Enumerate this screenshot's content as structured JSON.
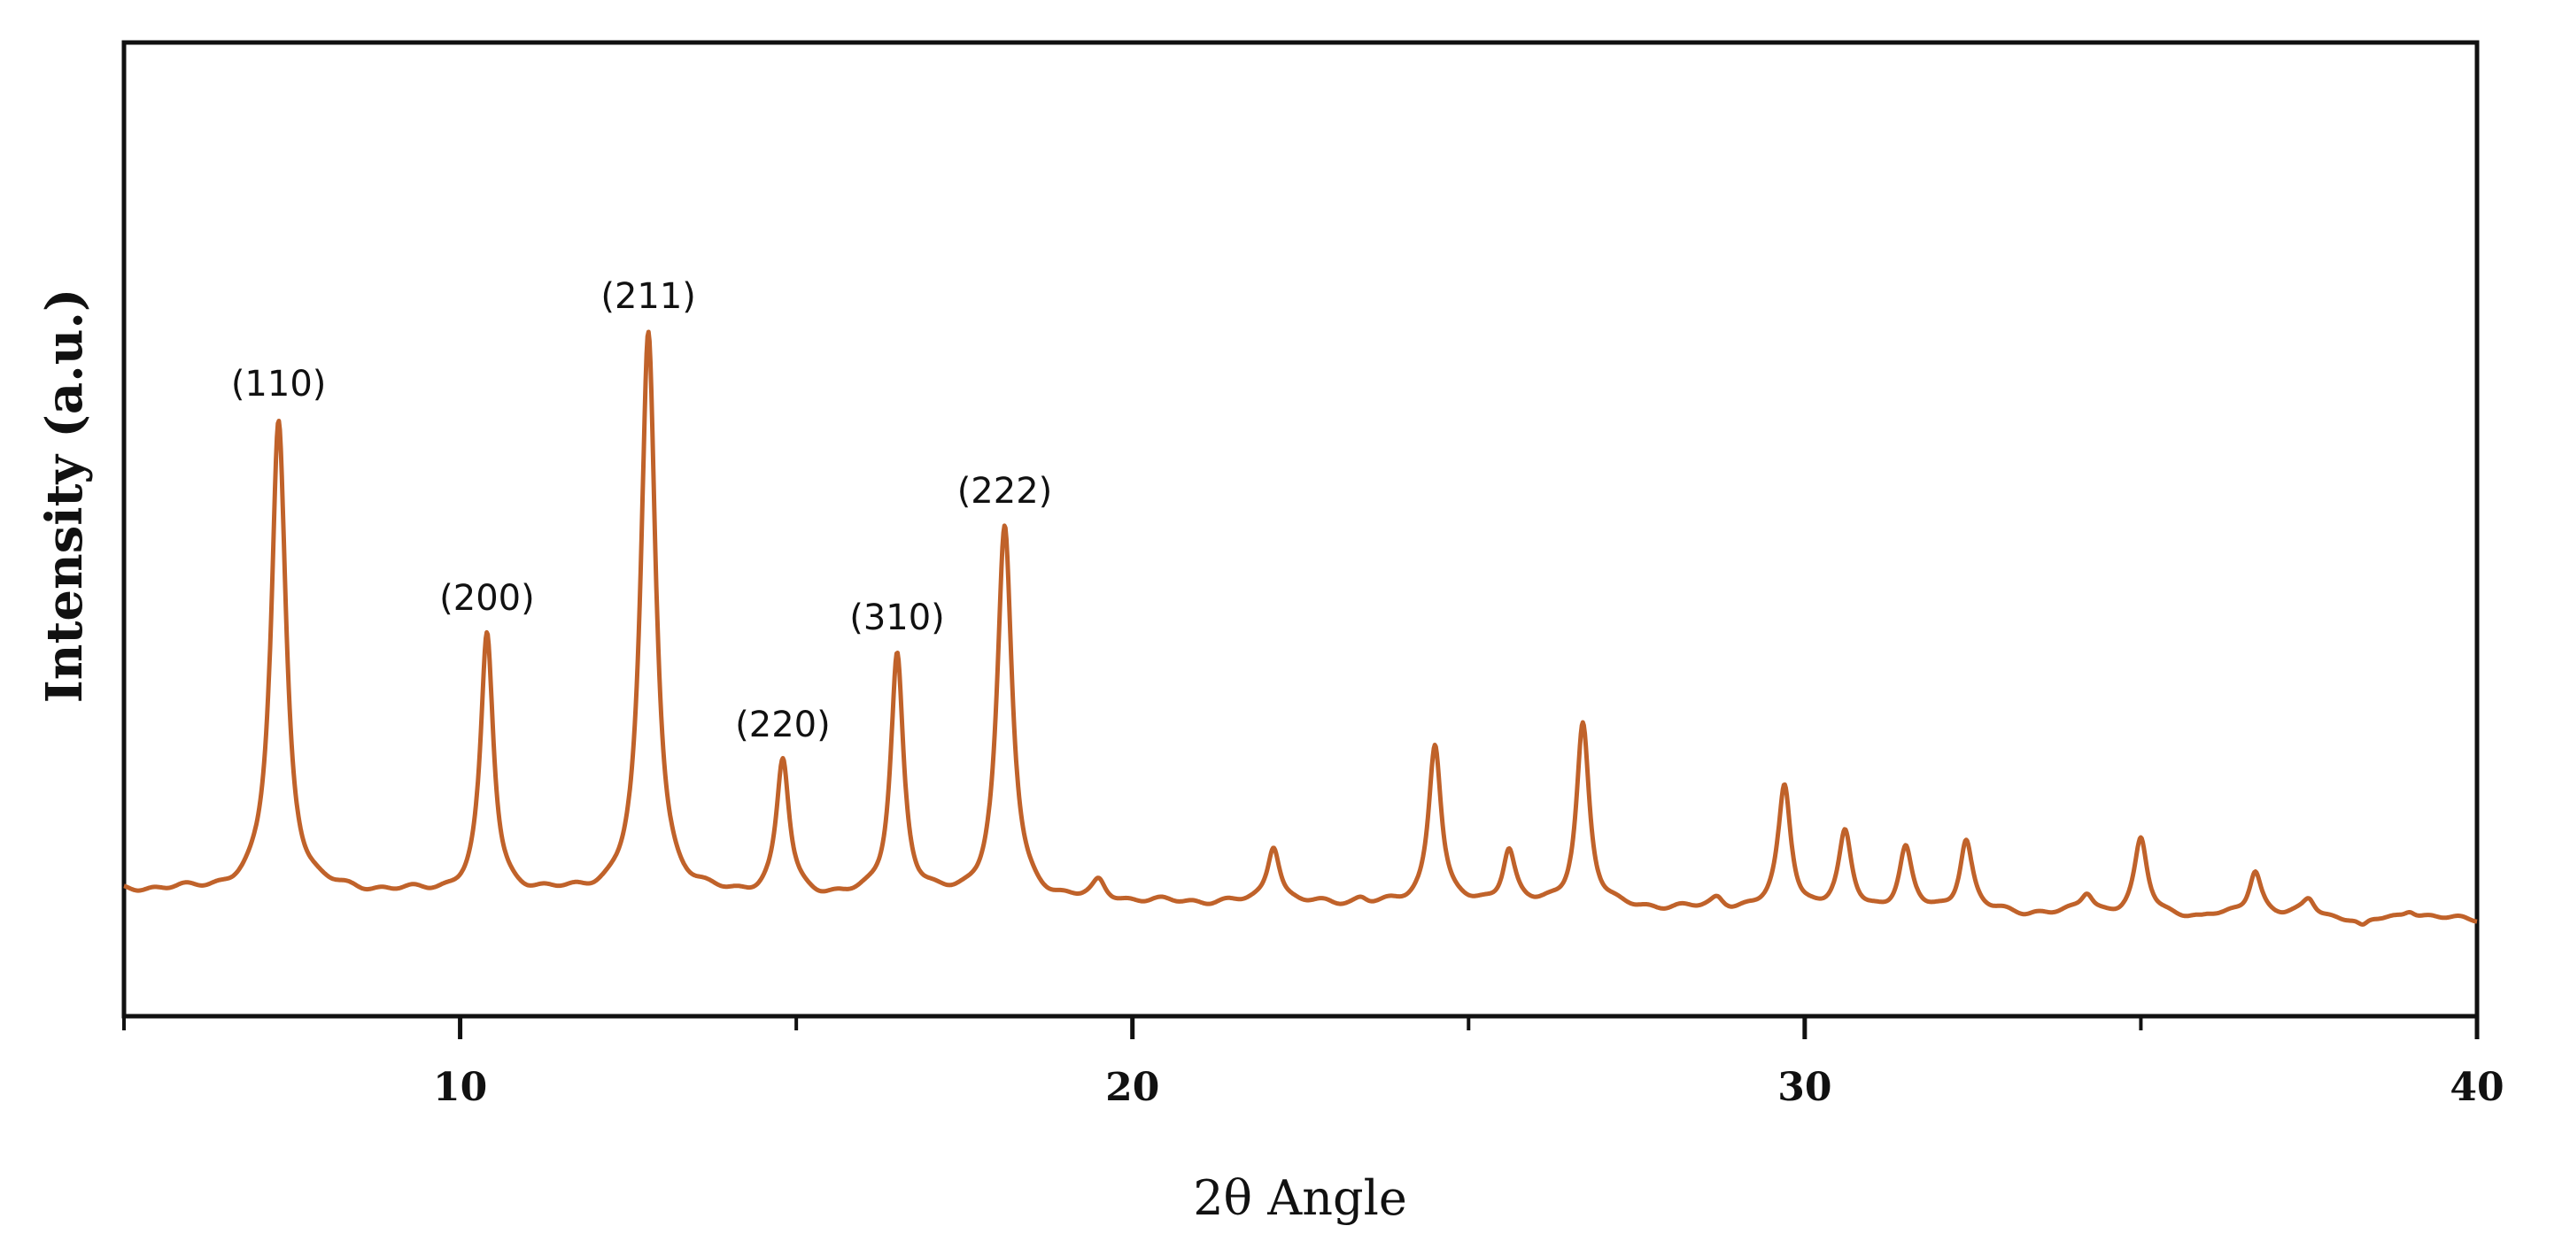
{
  "chart_data": {
    "type": "line",
    "title": "",
    "xlabel": "2θ Angle",
    "ylabel": "Intensity (a.u.)",
    "xlim": [
      5,
      40
    ],
    "ylim": [
      0,
      100
    ],
    "xticks": [
      10,
      20,
      30,
      40
    ],
    "grid": false,
    "legend": "none",
    "series": [
      {
        "color": "#c0622a",
        "baseline_start": 13.0,
        "baseline_end": 10.0,
        "peaks": [
          {
            "x": 7.3,
            "y": 61.0,
            "label": "(110)"
          },
          {
            "x": 10.4,
            "y": 39.0,
            "label": "(200)"
          },
          {
            "x": 12.8,
            "y": 70.0,
            "label": "(211)"
          },
          {
            "x": 14.8,
            "y": 26.0,
            "label": "(220)"
          },
          {
            "x": 16.5,
            "y": 37.0,
            "label": "(310)"
          },
          {
            "x": 18.1,
            "y": 50.0,
            "label": "(222)"
          },
          {
            "x": 19.5,
            "y": 13.5
          },
          {
            "x": 22.1,
            "y": 17.5
          },
          {
            "x": 23.4,
            "y": 12.0
          },
          {
            "x": 24.5,
            "y": 28.0
          },
          {
            "x": 25.6,
            "y": 17.0
          },
          {
            "x": 26.7,
            "y": 30.0
          },
          {
            "x": 28.7,
            "y": 12.0
          },
          {
            "x": 29.7,
            "y": 23.5
          },
          {
            "x": 30.6,
            "y": 18.5
          },
          {
            "x": 31.5,
            "y": 17.0
          },
          {
            "x": 32.4,
            "y": 18.0
          },
          {
            "x": 33.3,
            "y": 10.5
          },
          {
            "x": 34.2,
            "y": 12.5
          },
          {
            "x": 35.0,
            "y": 18.0
          },
          {
            "x": 35.9,
            "y": 10.0
          },
          {
            "x": 36.7,
            "y": 15.0
          },
          {
            "x": 37.5,
            "y": 12.0
          },
          {
            "x": 38.3,
            "y": 9.0
          },
          {
            "x": 39.0,
            "y": 11.0
          },
          {
            "x": 39.8,
            "y": 10.0
          }
        ]
      }
    ]
  }
}
